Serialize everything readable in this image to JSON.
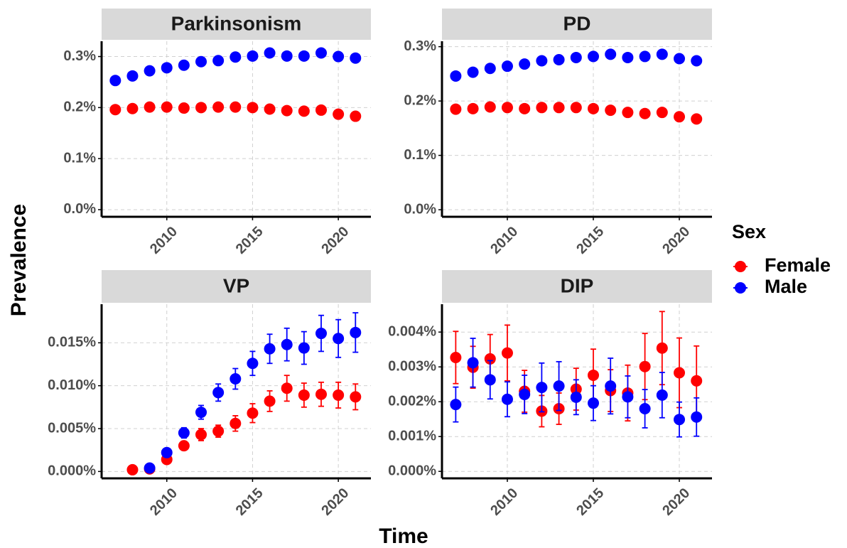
{
  "chart_data": [
    {
      "type": "scatter",
      "title": "Parkinsonism",
      "x": [
        2007,
        2008,
        2009,
        2010,
        2011,
        2012,
        2013,
        2014,
        2015,
        2016,
        2017,
        2018,
        2019,
        2020,
        2021
      ],
      "series": [
        {
          "name": "Female",
          "color": "#ff0000",
          "values": [
            0.196,
            0.198,
            0.201,
            0.201,
            0.199,
            0.2,
            0.201,
            0.201,
            0.2,
            0.197,
            0.194,
            0.193,
            0.195,
            0.187,
            0.183
          ]
        },
        {
          "name": "Male",
          "color": "#0000ff",
          "values": [
            0.253,
            0.262,
            0.272,
            0.278,
            0.283,
            0.29,
            0.292,
            0.299,
            0.301,
            0.307,
            0.301,
            0.301,
            0.307,
            0.3,
            0.297
          ]
        }
      ],
      "xlim": [
        2006.2,
        2021.9
      ],
      "xticks": [
        2010,
        2015,
        2020
      ],
      "ylim": [
        -0.014,
        0.33
      ],
      "yticks": [
        {
          "value": 0,
          "label": "0.0%"
        },
        {
          "value": 0.1,
          "label": "0.1%"
        },
        {
          "value": 0.2,
          "label": "0.2%"
        },
        {
          "value": 0.3,
          "label": "0.3%"
        }
      ],
      "grid": true
    },
    {
      "type": "scatter",
      "title": "PD",
      "x": [
        2007,
        2008,
        2009,
        2010,
        2011,
        2012,
        2013,
        2014,
        2015,
        2016,
        2017,
        2018,
        2019,
        2020,
        2021
      ],
      "series": [
        {
          "name": "Female",
          "color": "#ff0000",
          "values": [
            0.185,
            0.186,
            0.189,
            0.188,
            0.186,
            0.188,
            0.188,
            0.188,
            0.186,
            0.183,
            0.179,
            0.177,
            0.179,
            0.171,
            0.167
          ]
        },
        {
          "name": "Male",
          "color": "#0000ff",
          "values": [
            0.246,
            0.253,
            0.26,
            0.264,
            0.268,
            0.274,
            0.276,
            0.28,
            0.282,
            0.286,
            0.28,
            0.282,
            0.286,
            0.278,
            0.274
          ]
        }
      ],
      "xlim": [
        2006.2,
        2021.9
      ],
      "xticks": [
        2010,
        2015,
        2020
      ],
      "ylim": [
        -0.013,
        0.31
      ],
      "yticks": [
        {
          "value": 0,
          "label": "0.0%"
        },
        {
          "value": 0.1,
          "label": "0.1%"
        },
        {
          "value": 0.2,
          "label": "0.2%"
        },
        {
          "value": 0.3,
          "label": "0.3%"
        }
      ],
      "grid": true
    },
    {
      "type": "scatter",
      "title": "VP",
      "x": [
        2008,
        2009,
        2010,
        2011,
        2012,
        2013,
        2014,
        2015,
        2016,
        2017,
        2018,
        2019,
        2020,
        2021
      ],
      "series": [
        {
          "name": "Female",
          "color": "#ff0000",
          "values": [
            0.0002,
            0.0003,
            0.0014,
            0.003,
            0.0043,
            0.0047,
            0.0056,
            0.0068,
            0.0082,
            0.0097,
            0.0089,
            0.009,
            0.0089,
            0.0087
          ],
          "errors": [
            0.0001,
            0.0001,
            0.0003,
            0.0005,
            0.0007,
            0.0007,
            0.0009,
            0.0011,
            0.0012,
            0.0015,
            0.0014,
            0.0014,
            0.0015,
            0.0015
          ]
        },
        {
          "name": "Male",
          "color": "#0000ff",
          "values": [
            null,
            0.0004,
            0.0022,
            0.0045,
            0.0069,
            0.0092,
            0.0108,
            0.0126,
            0.0143,
            0.0148,
            0.0144,
            0.0161,
            0.0155,
            0.0162
          ],
          "errors": [
            null,
            0.0002,
            0.0004,
            0.0006,
            0.0008,
            0.001,
            0.0012,
            0.0014,
            0.0017,
            0.0019,
            0.0019,
            0.0021,
            0.0022,
            0.0023
          ]
        }
      ],
      "xlim": [
        2006.2,
        2021.9
      ],
      "xticks": [
        2010,
        2015,
        2020
      ],
      "ylim": [
        -0.0008,
        0.0195
      ],
      "yticks": [
        {
          "value": 0,
          "label": "0.000%"
        },
        {
          "value": 0.005,
          "label": "0.005%"
        },
        {
          "value": 0.01,
          "label": "0.010%"
        },
        {
          "value": 0.015,
          "label": "0.015%"
        }
      ],
      "grid": true
    },
    {
      "type": "scatter",
      "title": "DIP",
      "x": [
        2007,
        2008,
        2009,
        2010,
        2011,
        2012,
        2013,
        2014,
        2015,
        2016,
        2017,
        2018,
        2019,
        2020,
        2021
      ],
      "series": [
        {
          "name": "Female",
          "color": "#ff0000",
          "values": [
            0.00327,
            0.00299,
            0.00323,
            0.0034,
            0.0023,
            0.00173,
            0.0018,
            0.00236,
            0.00276,
            0.00232,
            0.00225,
            0.00301,
            0.00354,
            0.00283,
            0.0026
          ],
          "errors": [
            0.00075,
            0.0006,
            0.0007,
            0.0008,
            0.0006,
            0.00045,
            0.00045,
            0.0006,
            0.00075,
            0.0006,
            0.0008,
            0.00095,
            0.00105,
            0.001,
            0.001
          ]
        },
        {
          "name": "Male",
          "color": "#0000ff",
          "values": [
            0.00192,
            0.00312,
            0.00263,
            0.00207,
            0.00221,
            0.00241,
            0.00245,
            0.00213,
            0.00196,
            0.00245,
            0.00214,
            0.0018,
            0.00219,
            0.00149,
            0.00156
          ],
          "errors": [
            0.0005,
            0.0007,
            0.00055,
            0.0005,
            0.00055,
            0.0007,
            0.0007,
            0.0005,
            0.0005,
            0.0008,
            0.0006,
            0.00055,
            0.00065,
            0.0005,
            0.00055
          ]
        }
      ],
      "xlim": [
        2006.2,
        2021.9
      ],
      "xticks": [
        2010,
        2015,
        2020
      ],
      "ylim": [
        -0.0002,
        0.0048
      ],
      "yticks": [
        {
          "value": 0,
          "label": "0.000%"
        },
        {
          "value": 0.001,
          "label": "0.001%"
        },
        {
          "value": 0.002,
          "label": "0.002%"
        },
        {
          "value": 0.003,
          "label": "0.003%"
        },
        {
          "value": 0.004,
          "label": "0.004%"
        }
      ],
      "grid": true
    }
  ],
  "x_label": "Time",
  "y_label": "Prevalence",
  "legend_title": "Sex"
}
